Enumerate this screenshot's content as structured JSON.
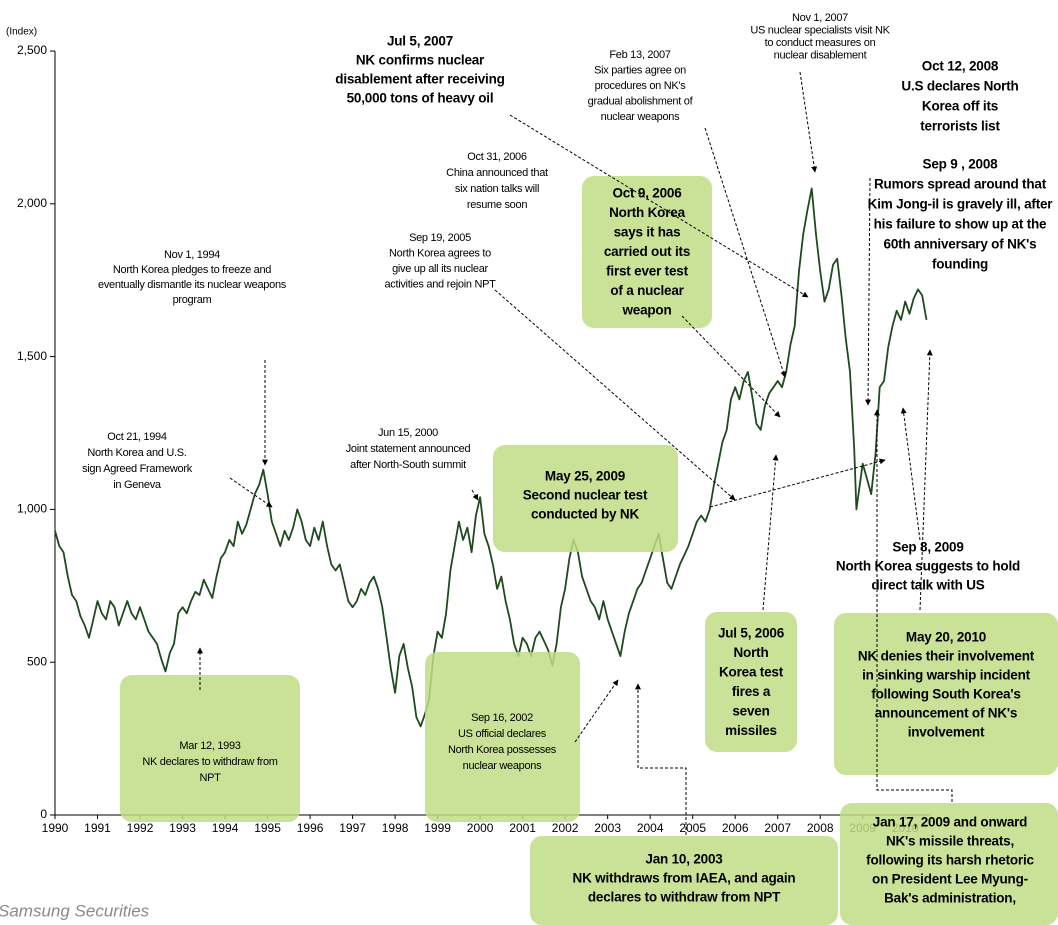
{
  "chart_data": {
    "type": "line",
    "y_label": "(Index)",
    "source": "Samsung Securities",
    "xlim": [
      1990,
      2010.7
    ],
    "xticks": [
      1990,
      1991,
      1992,
      1993,
      1994,
      1995,
      1996,
      1997,
      1998,
      1999,
      2000,
      2001,
      2002,
      2003,
      2004,
      2005,
      2006,
      2007,
      2008,
      2009,
      2010
    ],
    "ylim": [
      0,
      2500
    ],
    "yticks": [
      0,
      500,
      {
        "value": 1000,
        "label": "1,000"
      },
      {
        "value": 1500,
        "label": "1,500"
      },
      {
        "value": 2000,
        "label": "2,000"
      },
      {
        "value": 2500,
        "label": "2,500"
      }
    ],
    "series": [
      {
        "color": "#1e4a1e",
        "x": [
          1990.0,
          1990.1,
          1990.2,
          1990.3,
          1990.4,
          1990.5,
          1990.6,
          1990.7,
          1990.8,
          1990.9,
          1991.0,
          1991.1,
          1991.2,
          1991.3,
          1991.4,
          1991.5,
          1991.6,
          1991.7,
          1991.8,
          1991.9,
          1992.0,
          1992.1,
          1992.2,
          1992.3,
          1992.4,
          1992.5,
          1992.6,
          1992.7,
          1992.8,
          1992.9,
          1993.0,
          1993.1,
          1993.2,
          1993.3,
          1993.4,
          1993.5,
          1993.6,
          1993.7,
          1993.8,
          1993.9,
          1994.0,
          1994.1,
          1994.2,
          1994.3,
          1994.4,
          1994.5,
          1994.6,
          1994.7,
          1994.8,
          1994.9,
          1995.0,
          1995.1,
          1995.2,
          1995.3,
          1995.4,
          1995.5,
          1995.6,
          1995.7,
          1995.8,
          1995.9,
          1996.0,
          1996.1,
          1996.2,
          1996.3,
          1996.4,
          1996.5,
          1996.6,
          1996.7,
          1996.8,
          1996.9,
          1997.0,
          1997.1,
          1997.2,
          1997.3,
          1997.4,
          1997.5,
          1997.6,
          1997.7,
          1997.8,
          1997.9,
          1998.0,
          1998.1,
          1998.2,
          1998.3,
          1998.4,
          1998.5,
          1998.6,
          1998.7,
          1998.8,
          1998.9,
          1999.0,
          1999.1,
          1999.2,
          1999.3,
          1999.4,
          1999.5,
          1999.6,
          1999.7,
          1999.8,
          1999.9,
          2000.0,
          2000.1,
          2000.2,
          2000.3,
          2000.4,
          2000.5,
          2000.6,
          2000.7,
          2000.8,
          2000.9,
          2001.0,
          2001.1,
          2001.2,
          2001.3,
          2001.4,
          2001.5,
          2001.6,
          2001.7,
          2001.8,
          2001.9,
          2002.0,
          2002.1,
          2002.2,
          2002.3,
          2002.4,
          2002.5,
          2002.6,
          2002.7,
          2002.8,
          2002.9,
          2003.0,
          2003.1,
          2003.2,
          2003.3,
          2003.4,
          2003.5,
          2003.6,
          2003.7,
          2003.8,
          2003.9,
          2004.0,
          2004.1,
          2004.2,
          2004.3,
          2004.4,
          2004.5,
          2004.6,
          2004.7,
          2004.8,
          2004.9,
          2005.0,
          2005.1,
          2005.2,
          2005.3,
          2005.4,
          2005.5,
          2005.6,
          2005.7,
          2005.8,
          2005.9,
          2006.0,
          2006.1,
          2006.2,
          2006.3,
          2006.4,
          2006.5,
          2006.6,
          2006.7,
          2006.8,
          2006.9,
          2007.0,
          2007.1,
          2007.2,
          2007.3,
          2007.4,
          2007.5,
          2007.6,
          2007.7,
          2007.8,
          2007.9,
          2008.0,
          2008.1,
          2008.2,
          2008.3,
          2008.4,
          2008.5,
          2008.6,
          2008.7,
          2008.8,
          2008.85,
          2008.9,
          2009.0,
          2009.1,
          2009.2,
          2009.3,
          2009.4,
          2009.5,
          2009.6,
          2009.7,
          2009.8,
          2009.9,
          2010.0,
          2010.1,
          2010.2,
          2010.3,
          2010.4,
          2010.5
        ],
        "values": [
          930,
          880,
          860,
          780,
          720,
          700,
          650,
          620,
          580,
          640,
          700,
          660,
          640,
          700,
          680,
          620,
          660,
          700,
          660,
          640,
          680,
          640,
          600,
          580,
          560,
          510,
          470,
          530,
          560,
          660,
          680,
          660,
          700,
          730,
          720,
          770,
          740,
          710,
          780,
          840,
          860,
          900,
          880,
          960,
          920,
          950,
          1000,
          1050,
          1080,
          1130,
          1050,
          960,
          920,
          880,
          930,
          900,
          940,
          1000,
          960,
          900,
          880,
          940,
          900,
          960,
          880,
          820,
          800,
          820,
          760,
          700,
          680,
          700,
          740,
          720,
          760,
          780,
          740,
          680,
          580,
          480,
          400,
          520,
          560,
          480,
          420,
          320,
          290,
          330,
          380,
          520,
          600,
          580,
          660,
          800,
          880,
          960,
          900,
          940,
          860,
          980,
          1040,
          920,
          880,
          820,
          740,
          780,
          700,
          640,
          560,
          520,
          580,
          560,
          520,
          580,
          600,
          570,
          540,
          490,
          560,
          680,
          740,
          840,
          900,
          860,
          780,
          740,
          700,
          680,
          640,
          700,
          640,
          600,
          560,
          520,
          600,
          660,
          700,
          740,
          760,
          800,
          840,
          880,
          920,
          840,
          760,
          740,
          780,
          820,
          850,
          880,
          920,
          960,
          980,
          960,
          1000,
          1080,
          1150,
          1220,
          1260,
          1360,
          1400,
          1360,
          1420,
          1450,
          1370,
          1280,
          1260,
          1340,
          1380,
          1400,
          1420,
          1400,
          1450,
          1540,
          1600,
          1780,
          1900,
          1980,
          2050,
          1900,
          1780,
          1680,
          1720,
          1800,
          1820,
          1700,
          1560,
          1450,
          1200,
          1000,
          1050,
          1150,
          1100,
          1050,
          1180,
          1400,
          1420,
          1530,
          1600,
          1650,
          1620,
          1680,
          1640,
          1690,
          1720,
          1700,
          1620
        ]
      }
    ],
    "annotations": [
      [
        "Nov 1, 2007",
        "US nuclear specialists visit NK",
        "to conduct measures on",
        "nuclear disablement"
      ],
      [
        "Jul 5, 2007",
        "NK confirms nuclear",
        "disablement after receiving",
        "50,000 tons of heavy oil"
      ],
      [
        "Feb 13, 2007",
        "Six parties agree on",
        "procedures on NK's",
        "gradual abolishment of",
        "nuclear weapons"
      ],
      [
        "Oct 12, 2008",
        "U.S declares North",
        "Korea off its",
        "terrorists list"
      ],
      [
        "Oct 31, 2006",
        "China announced that",
        "six nation talks will",
        "resume soon"
      ],
      [
        "Oct 9, 2006",
        "North Korea",
        "says it has",
        "carried out its",
        "first ever test",
        "of a nuclear",
        "weapon"
      ],
      [
        "Sep 9 , 2008",
        "Rumors spread around that",
        "Kim Jong-il is gravely ill, after",
        "his failure to show up at the",
        "60th anniversary of NK's",
        "founding"
      ],
      [
        "Sep 19, 2005",
        "North Korea agrees to",
        "give up all its nuclear",
        "activities and rejoin NPT"
      ],
      [
        "Nov 1, 1994",
        "North Korea pledges to freeze and",
        "eventually dismantle its nuclear weapons",
        "program"
      ],
      [
        "Oct 21, 1994",
        "North Korea and U.S.",
        "sign Agreed Framework",
        "in Geneva"
      ],
      [
        "Jun 15, 2000",
        "Joint statement announced",
        "after North-South summit"
      ],
      [
        "May 25, 2009",
        "Second nuclear test",
        "conducted by NK"
      ],
      [
        "Sep 8, 2009",
        "North Korea suggests to hold",
        "direct talk with US"
      ],
      [
        "Jul 5, 2006",
        "North",
        "Korea test",
        "fires a",
        "seven",
        "missiles"
      ],
      [
        "May 20, 2010",
        "NK denies their involvement",
        "in sinking warship incident",
        "following South Korea's",
        "announcement of NK's",
        "involvement"
      ],
      [
        "Mar 12, 1993",
        "NK declares to withdraw from",
        "NPT"
      ],
      [
        "Sep 16, 2002",
        "US official declares",
        "North Korea possesses",
        "nuclear weapons"
      ],
      [
        "Jan 17, 2009 and onward",
        "NK's missile threats,",
        "following its harsh rhetoric",
        "on President Lee Myung-",
        "Bak's administration,"
      ],
      [
        "Jan 10, 2003",
        "NK withdraws from IAEA, and again",
        "declares to withdraw from NPT"
      ]
    ]
  }
}
